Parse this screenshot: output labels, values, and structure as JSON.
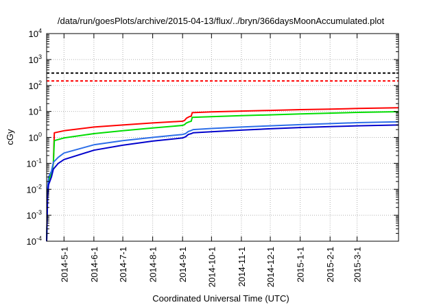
{
  "chart_data": {
    "type": "line",
    "title": "/data/run/goesPlots/archive/2015-04-13/flux/../bryn/366daysMoonAccumulated.plot",
    "xlabel": "Coordinated Universal Time (UTC)",
    "ylabel": "cGy",
    "yscale": "log",
    "ylim": [
      0.0001,
      10000
    ],
    "xlim": [
      "2014-04-13",
      "2015-04-13"
    ],
    "grid": true,
    "legend": "none",
    "y_ticks": [
      {
        "value": 0.0001,
        "base": "10",
        "exp": "-4"
      },
      {
        "value": 0.001,
        "base": "10",
        "exp": "-3"
      },
      {
        "value": 0.01,
        "base": "10",
        "exp": "-2"
      },
      {
        "value": 0.1,
        "base": "10",
        "exp": "-1"
      },
      {
        "value": 1,
        "base": "10",
        "exp": "0"
      },
      {
        "value": 10,
        "base": "10",
        "exp": "1"
      },
      {
        "value": 100,
        "base": "10",
        "exp": "2"
      },
      {
        "value": 1000,
        "base": "10",
        "exp": "3"
      },
      {
        "value": 10000,
        "base": "10",
        "exp": "4"
      }
    ],
    "x_ticks": [
      {
        "date": "2014-05-01",
        "label": "2014-5-1"
      },
      {
        "date": "2014-06-01",
        "label": "2014-6-1"
      },
      {
        "date": "2014-07-01",
        "label": "2014-7-1"
      },
      {
        "date": "2014-08-01",
        "label": "2014-8-1"
      },
      {
        "date": "2014-09-01",
        "label": "2014-9-1"
      },
      {
        "date": "2014-10-01",
        "label": "2014-10-1"
      },
      {
        "date": "2014-11-01",
        "label": "2014-11-1"
      },
      {
        "date": "2014-12-01",
        "label": "2014-12-1"
      },
      {
        "date": "2015-01-01",
        "label": "2015-1-1"
      },
      {
        "date": "2015-02-01",
        "label": "2015-2-1"
      },
      {
        "date": "2015-03-01",
        "label": "2015-3-1"
      }
    ],
    "hlines": [
      {
        "value": 300,
        "color": "#000000",
        "style": "dashed"
      },
      {
        "value": 150,
        "color": "#ff0000",
        "style": "dashed"
      }
    ],
    "series": [
      {
        "color": "#ff0000",
        "points": [
          [
            "2014-04-13",
            0.0001
          ],
          [
            "2014-04-14",
            0.008
          ],
          [
            "2014-04-15",
            0.02
          ],
          [
            "2014-04-17",
            0.035
          ],
          [
            "2014-04-19",
            0.06
          ],
          [
            "2014-04-20",
            0.1
          ],
          [
            "2014-04-21",
            1.5
          ],
          [
            "2014-05-01",
            1.8
          ],
          [
            "2014-06-01",
            2.5
          ],
          [
            "2014-07-01",
            3.0
          ],
          [
            "2014-08-01",
            3.6
          ],
          [
            "2014-09-01",
            4.2
          ],
          [
            "2014-09-03",
            4.5
          ],
          [
            "2014-09-05",
            5.5
          ],
          [
            "2014-09-08",
            6.3
          ],
          [
            "2014-09-10",
            6.6
          ],
          [
            "2014-09-11",
            9.0
          ],
          [
            "2014-10-01",
            9.6
          ],
          [
            "2014-11-01",
            10.3
          ],
          [
            "2014-12-01",
            11.0
          ],
          [
            "2015-01-01",
            11.7
          ],
          [
            "2015-02-01",
            12.3
          ],
          [
            "2015-03-01",
            13.0
          ],
          [
            "2015-04-13",
            13.8
          ]
        ]
      },
      {
        "color": "#00dd00",
        "points": [
          [
            "2014-04-13",
            0.0001
          ],
          [
            "2014-04-14",
            0.008
          ],
          [
            "2014-04-15",
            0.02
          ],
          [
            "2014-04-17",
            0.035
          ],
          [
            "2014-04-19",
            0.06
          ],
          [
            "2014-04-20",
            0.1
          ],
          [
            "2014-04-21",
            0.75
          ],
          [
            "2014-05-01",
            0.95
          ],
          [
            "2014-06-01",
            1.4
          ],
          [
            "2014-07-01",
            1.8
          ],
          [
            "2014-08-01",
            2.3
          ],
          [
            "2014-09-01",
            2.9
          ],
          [
            "2014-09-03",
            3.1
          ],
          [
            "2014-09-05",
            3.6
          ],
          [
            "2014-09-08",
            4.0
          ],
          [
            "2014-09-10",
            4.2
          ],
          [
            "2014-09-11",
            5.9
          ],
          [
            "2014-10-01",
            6.3
          ],
          [
            "2014-11-01",
            6.9
          ],
          [
            "2014-12-01",
            7.4
          ],
          [
            "2015-01-01",
            8.0
          ],
          [
            "2015-02-01",
            8.6
          ],
          [
            "2015-03-01",
            9.2
          ],
          [
            "2015-04-13",
            9.8
          ]
        ]
      },
      {
        "color": "#2b6de8",
        "points": [
          [
            "2014-04-13",
            0.0001
          ],
          [
            "2014-04-14",
            0.01
          ],
          [
            "2014-04-15",
            0.03
          ],
          [
            "2014-04-18",
            0.05
          ],
          [
            "2014-04-20",
            0.11
          ],
          [
            "2014-04-25",
            0.17
          ],
          [
            "2014-05-01",
            0.25
          ],
          [
            "2014-06-01",
            0.52
          ],
          [
            "2014-07-01",
            0.75
          ],
          [
            "2014-08-01",
            1.0
          ],
          [
            "2014-09-01",
            1.3
          ],
          [
            "2014-09-04",
            1.4
          ],
          [
            "2014-09-07",
            1.7
          ],
          [
            "2014-09-10",
            1.85
          ],
          [
            "2014-09-12",
            2.0
          ],
          [
            "2014-10-01",
            2.2
          ],
          [
            "2014-11-01",
            2.5
          ],
          [
            "2014-12-01",
            2.8
          ],
          [
            "2015-01-01",
            3.1
          ],
          [
            "2015-02-01",
            3.4
          ],
          [
            "2015-03-01",
            3.7
          ],
          [
            "2015-04-13",
            4.0
          ]
        ]
      },
      {
        "color": "#0000cc",
        "points": [
          [
            "2014-04-13",
            0.0001
          ],
          [
            "2014-04-14",
            0.005
          ],
          [
            "2014-04-15",
            0.015
          ],
          [
            "2014-04-18",
            0.03
          ],
          [
            "2014-04-20",
            0.06
          ],
          [
            "2014-04-25",
            0.1
          ],
          [
            "2014-05-01",
            0.14
          ],
          [
            "2014-06-01",
            0.32
          ],
          [
            "2014-07-01",
            0.5
          ],
          [
            "2014-08-01",
            0.72
          ],
          [
            "2014-09-01",
            0.95
          ],
          [
            "2014-09-04",
            1.05
          ],
          [
            "2014-09-07",
            1.3
          ],
          [
            "2014-09-10",
            1.4
          ],
          [
            "2014-09-12",
            1.5
          ],
          [
            "2014-10-01",
            1.65
          ],
          [
            "2014-11-01",
            1.9
          ],
          [
            "2014-12-01",
            2.15
          ],
          [
            "2015-01-01",
            2.4
          ],
          [
            "2015-02-01",
            2.6
          ],
          [
            "2015-03-01",
            2.8
          ],
          [
            "2015-04-13",
            3.0
          ]
        ]
      }
    ]
  }
}
